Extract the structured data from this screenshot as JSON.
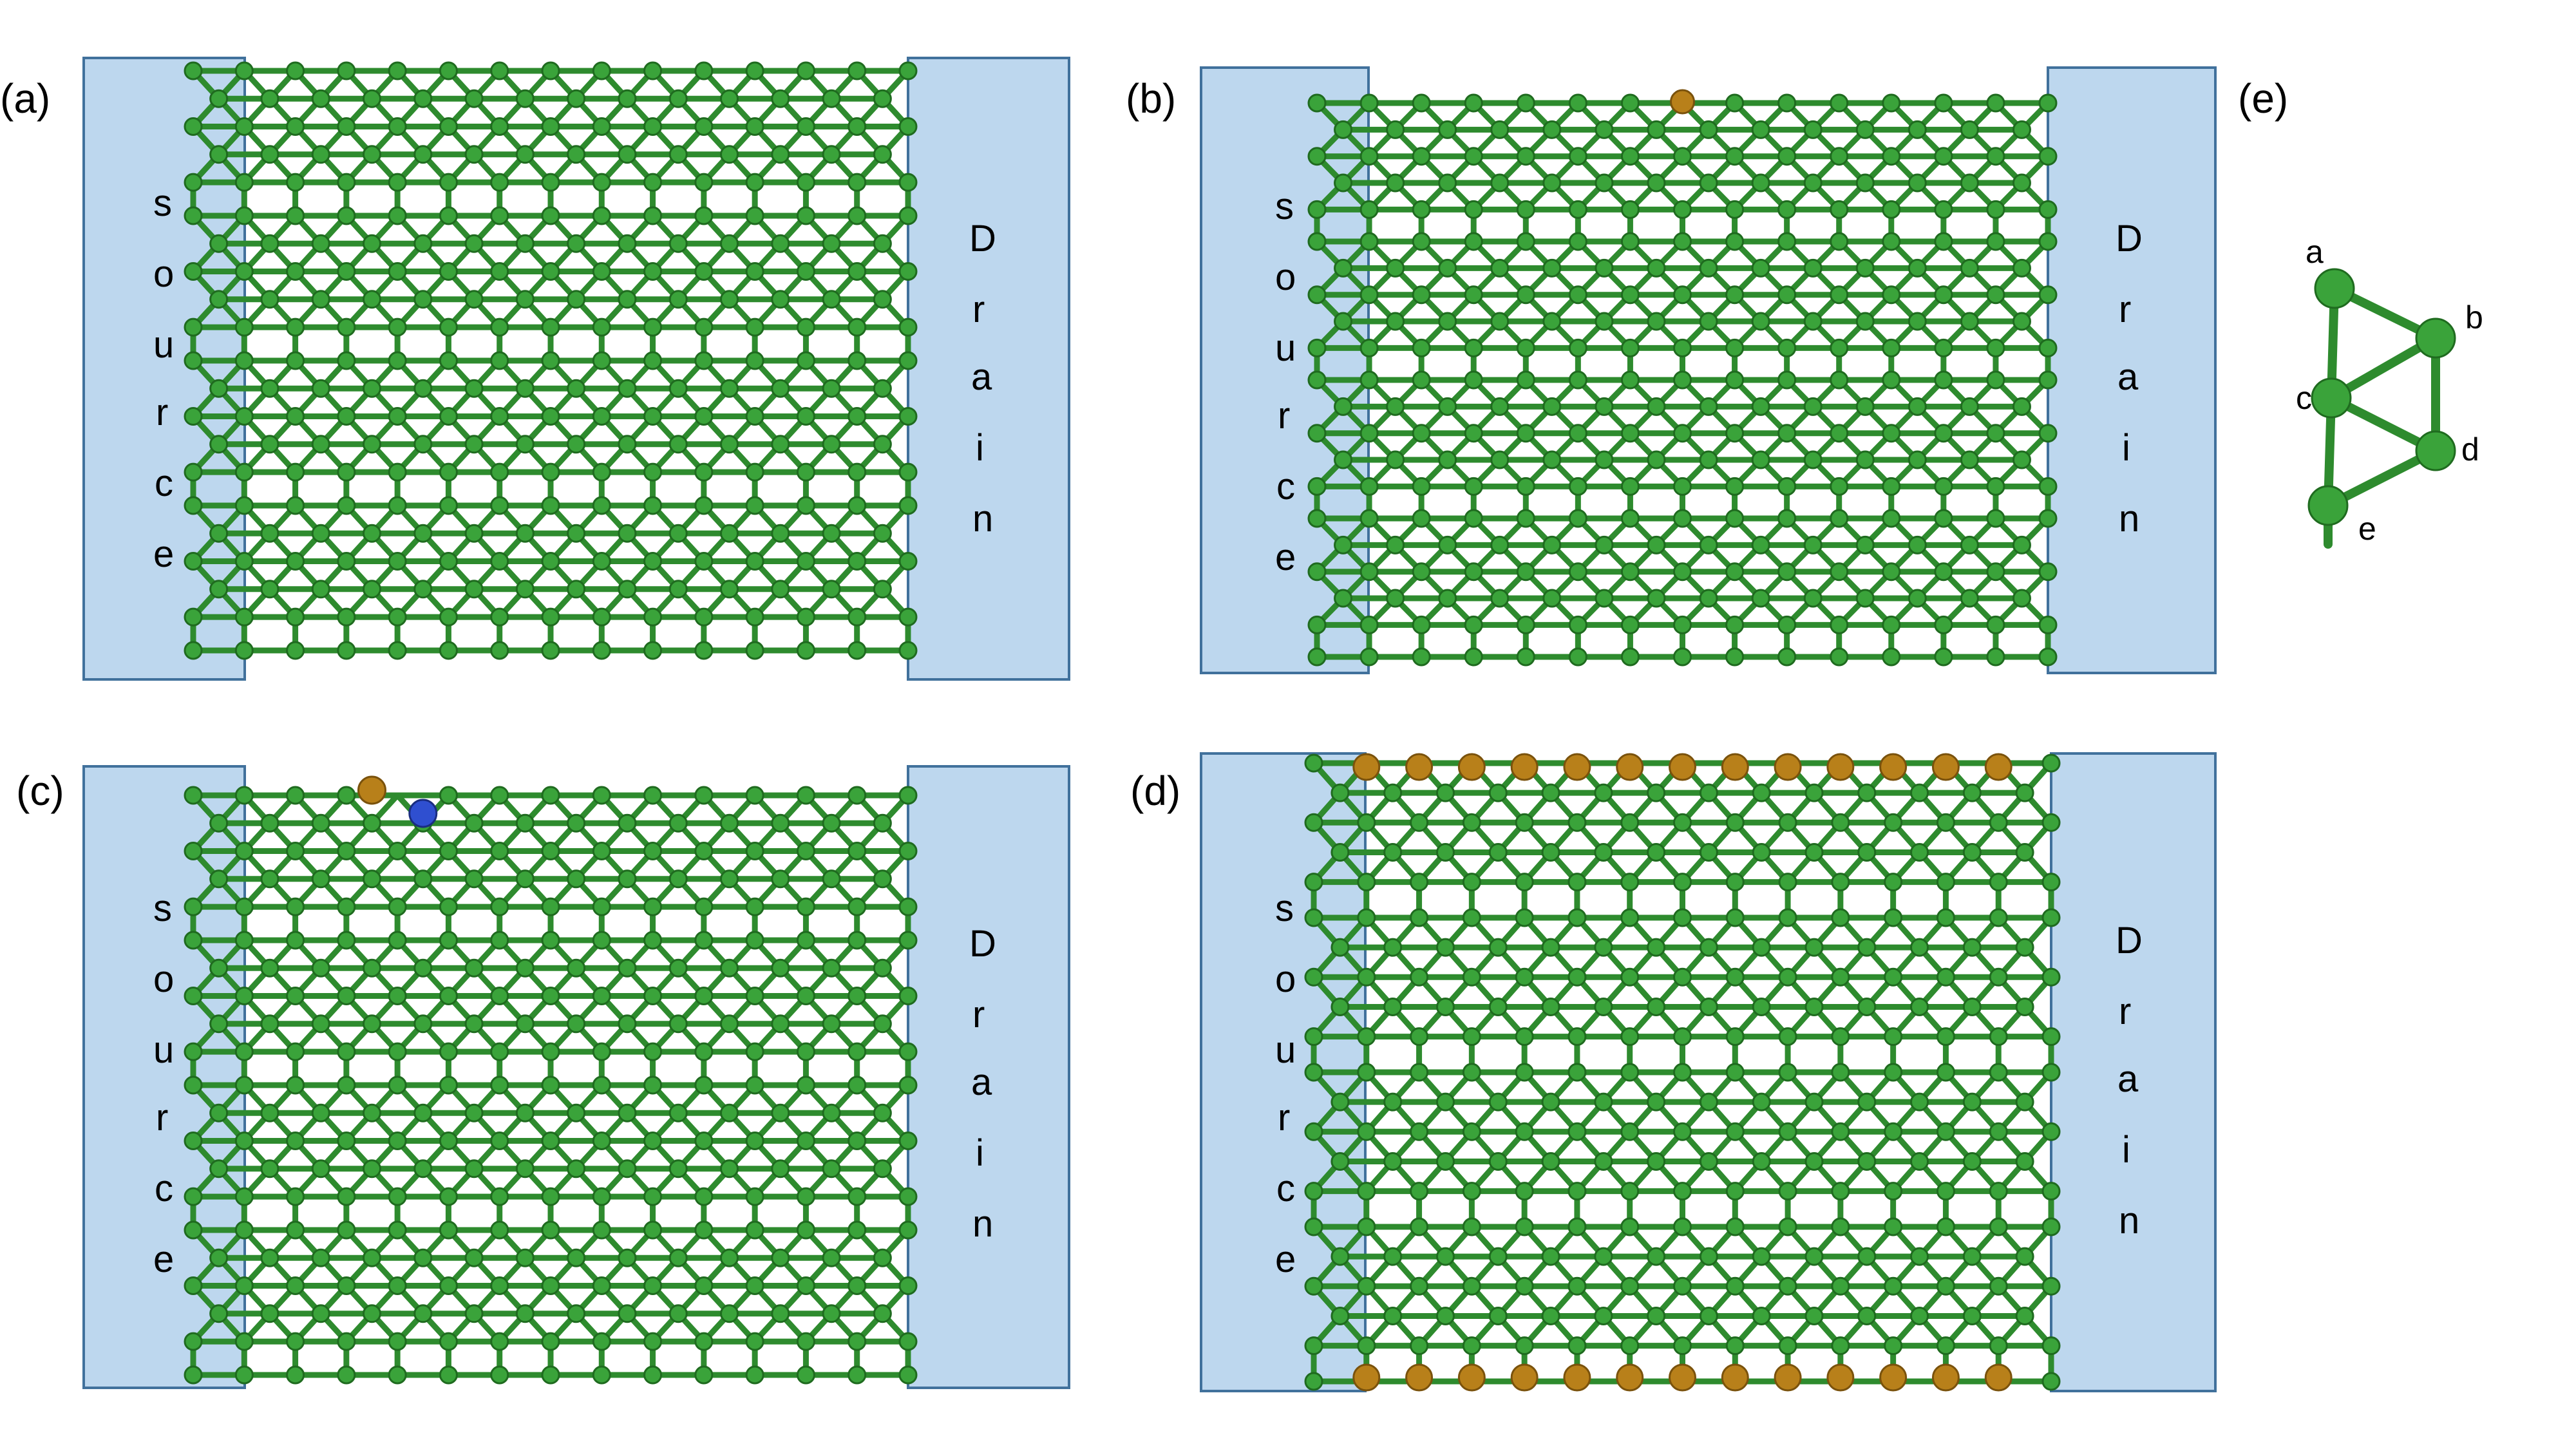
{
  "panels": [
    {
      "id": "a",
      "label": "(a)",
      "source_letters": [
        "s",
        "o",
        "u",
        "r",
        "c",
        "e"
      ],
      "drain_letters": [
        "D",
        "r",
        "a",
        "i",
        "n"
      ],
      "variant": "pristine"
    },
    {
      "id": "b",
      "label": "(b)",
      "source_letters": [
        "s",
        "o",
        "u",
        "r",
        "c",
        "e"
      ],
      "drain_letters": [
        "D",
        "r",
        "a",
        "i",
        "n"
      ],
      "variant": "single-gold"
    },
    {
      "id": "c",
      "label": "(c)",
      "source_letters": [
        "s",
        "o",
        "u",
        "r",
        "c",
        "e"
      ],
      "drain_letters": [
        "D",
        "r",
        "a",
        "i",
        "n"
      ],
      "variant": "gold-blue-vacancy"
    },
    {
      "id": "d",
      "label": "(d)",
      "source_letters": [
        "s",
        "o",
        "u",
        "r",
        "c",
        "e"
      ],
      "drain_letters": [
        "D",
        "r",
        "a",
        "i",
        "n"
      ],
      "variant": "gold-edges"
    }
  ],
  "unit_cell": {
    "label": "(e)",
    "atoms": [
      "a",
      "b",
      "c",
      "d",
      "e"
    ]
  },
  "colors": {
    "electrode_fill": "#bdd7ee",
    "electrode_stroke": "#41719c",
    "boron": "#3aa33a",
    "gold_dopant": "#b8801a",
    "blue_dopant": "#2f4fd0"
  }
}
